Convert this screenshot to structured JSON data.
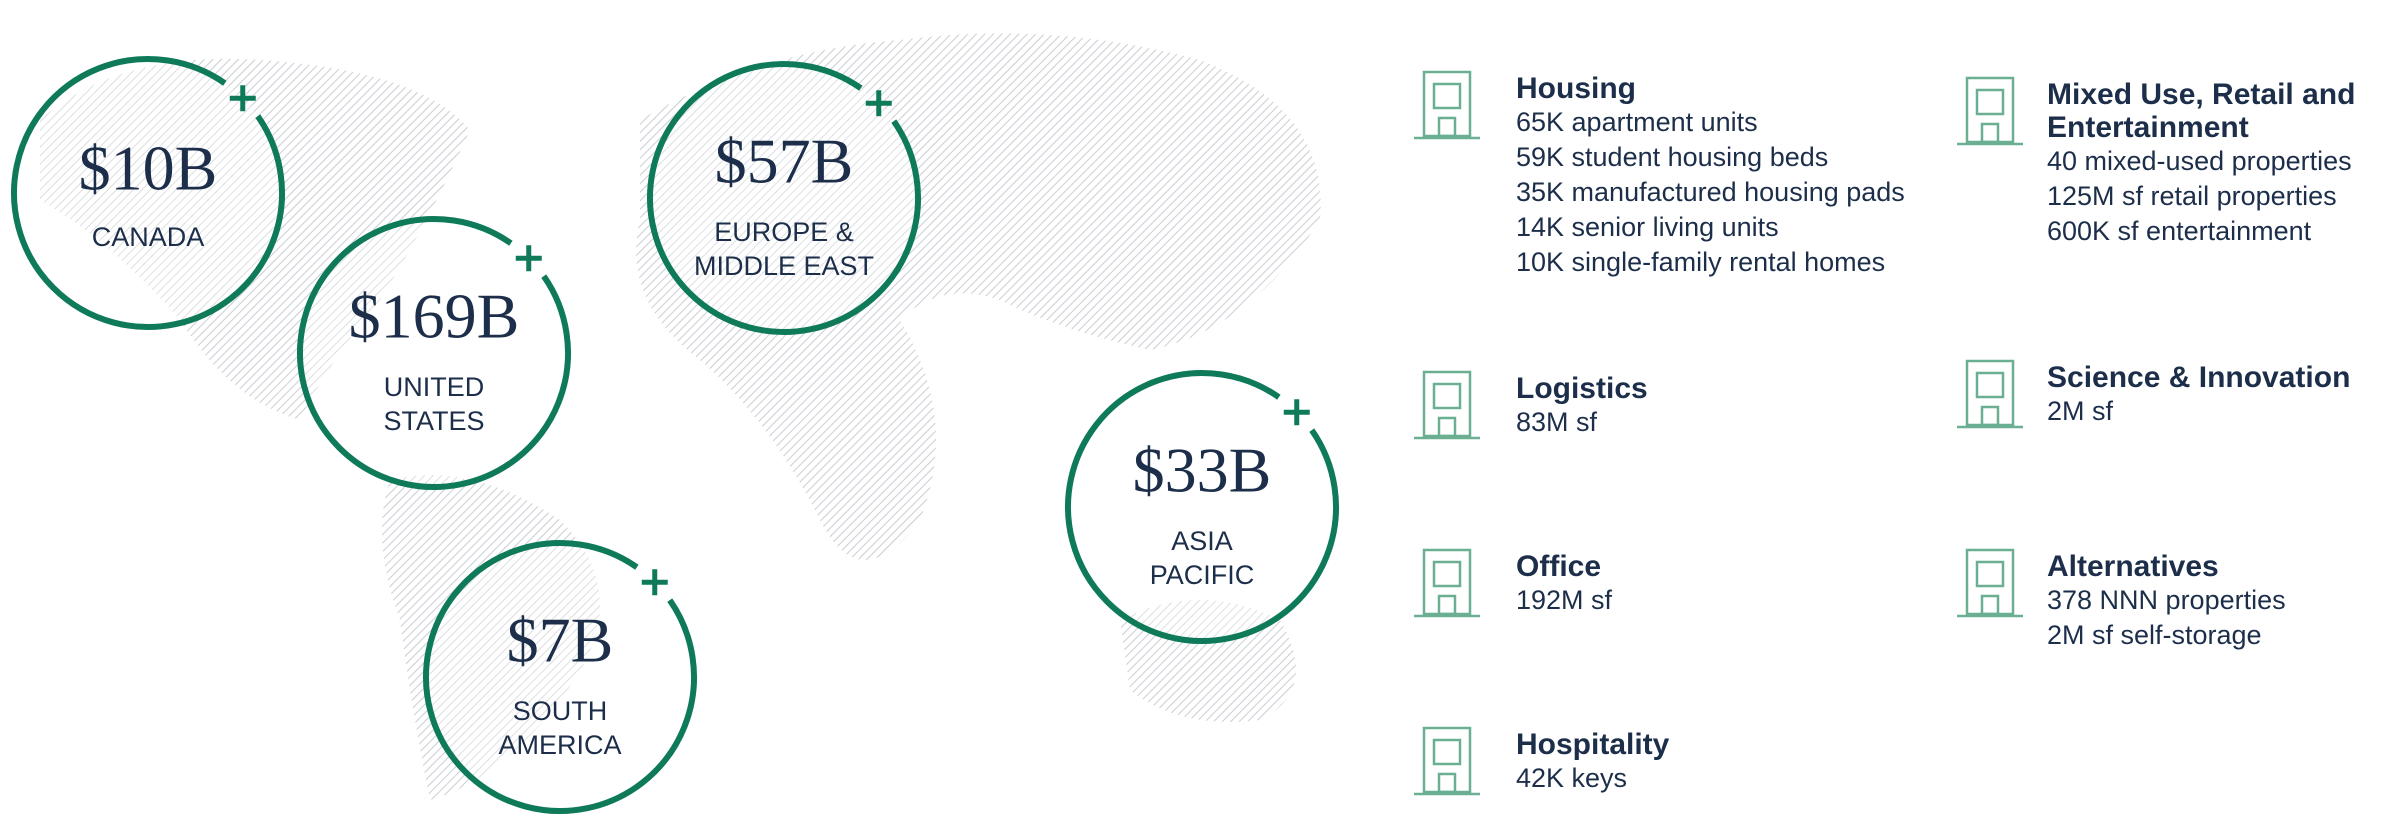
{
  "regions": [
    {
      "value": "$10B",
      "label": [
        "CANADA"
      ]
    },
    {
      "value": "$169B",
      "label": [
        "UNITED",
        "STATES"
      ]
    },
    {
      "value": "$57B",
      "label": [
        "EUROPE &",
        "MIDDLE EAST"
      ]
    },
    {
      "value": "$33B",
      "label": [
        "ASIA",
        "PACIFIC"
      ]
    },
    {
      "value": "$7B",
      "label": [
        "SOUTH",
        "AMERICA"
      ]
    }
  ],
  "sectors": [
    {
      "title": "Housing",
      "lines": [
        "65K apartment units",
        "59K student housing beds",
        "35K manufactured housing pads",
        "14K senior living units",
        "10K single-family rental homes"
      ]
    },
    {
      "title": "Logistics",
      "lines": [
        "83M sf"
      ]
    },
    {
      "title": "Office",
      "lines": [
        "192M sf"
      ]
    },
    {
      "title": "Hospitality",
      "lines": [
        "42K keys"
      ]
    },
    {
      "title": "Mixed Use, Retail and Entertainment",
      "lines": [
        "40 mixed-used properties",
        "125M sf retail properties",
        "600K sf entertainment"
      ]
    },
    {
      "title": "Science & Innovation",
      "lines": [
        "2M sf"
      ]
    },
    {
      "title": "Alternatives",
      "lines": [
        "378 NNN properties",
        "2M sf self-storage"
      ]
    }
  ]
}
